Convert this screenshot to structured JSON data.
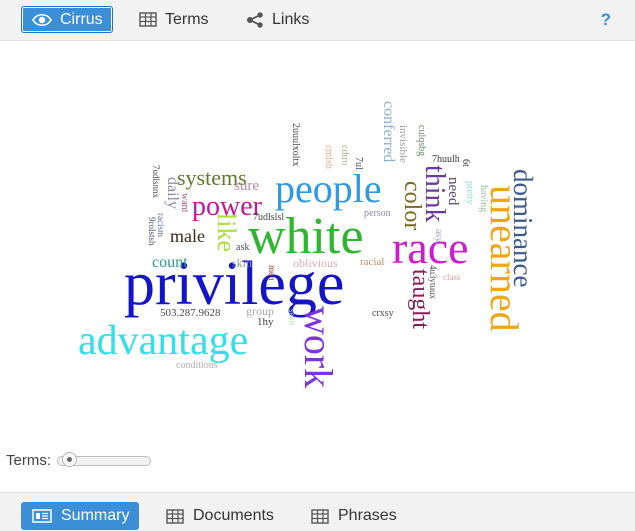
{
  "toolbar": {
    "tabs": [
      {
        "label": "Cirrus",
        "icon": "eye-icon",
        "active": true
      },
      {
        "label": "Terms",
        "icon": "table-icon",
        "active": false
      },
      {
        "label": "Links",
        "icon": "share-icon",
        "active": false
      }
    ],
    "help_label": "?"
  },
  "cloud": {
    "words": [
      {
        "text": "privilege",
        "color": "#1515c8"
      },
      {
        "text": "white",
        "color": "#2fb52f"
      },
      {
        "text": "people",
        "color": "#2e9ae6"
      },
      {
        "text": "race",
        "color": "#d01ad0"
      },
      {
        "text": "advantage",
        "color": "#33dfe8"
      },
      {
        "text": "work",
        "color": "#7a35e0"
      },
      {
        "text": "unearned",
        "color": "#f0a514"
      },
      {
        "text": "dominance",
        "color": "#3b5b8a"
      },
      {
        "text": "power",
        "color": "#c21896"
      },
      {
        "text": "systems",
        "color": "#5f7a2a"
      },
      {
        "text": "like",
        "color": "#a6e23a"
      },
      {
        "text": "think",
        "color": "#6a3aa0"
      },
      {
        "text": "color",
        "color": "#7a6a20"
      },
      {
        "text": "taught",
        "color": "#8a1a5a"
      },
      {
        "text": "count",
        "color": "#2a9a8a"
      },
      {
        "text": "male",
        "color": "#3a2a1a"
      },
      {
        "text": "daily",
        "color": "#8a8aaa"
      },
      {
        "text": "sure",
        "color": "#c08aa0"
      },
      {
        "text": "conferred",
        "color": "#8ab0d0"
      },
      {
        "text": "need",
        "color": "#5a4a6a"
      },
      {
        "text": "skin",
        "color": "#8a9a9a"
      },
      {
        "text": "oblivious",
        "color": "#d0b0b0"
      },
      {
        "text": "racial",
        "color": "#c09060"
      },
      {
        "text": "group",
        "color": "#aaaaaa"
      },
      {
        "text": "1hy",
        "color": "#444444"
      },
      {
        "text": "503.287.9628",
        "color": "#4a4a4a"
      },
      {
        "text": "conditions",
        "color": "#b0b0b0"
      },
      {
        "text": "ask",
        "color": "#4a4a5a"
      },
      {
        "text": "7udlslsl",
        "color": "#3a4a3a"
      },
      {
        "text": "person",
        "color": "#8a8ab0"
      },
      {
        "text": "crxsy",
        "color": "#4a4a4a"
      },
      {
        "text": "asyl",
        "color": "#b0a0d0"
      },
      {
        "text": "class",
        "color": "#e0a0a0"
      },
      {
        "text": "seen",
        "color": "#b0e0a0"
      },
      {
        "text": "men",
        "color": "#a03a3a"
      },
      {
        "text": "want",
        "color": "#a05a8a"
      },
      {
        "text": "racism",
        "color": "#5a6a9a"
      },
      {
        "text": "7udlsnnx",
        "color": "#4a4a4a"
      },
      {
        "text": "9rolstsh",
        "color": "#4a4a6a"
      },
      {
        "text": "2uuulxoltx",
        "color": "#4a4a4a"
      },
      {
        "text": "cmlsh",
        "color": "#e0b090"
      },
      {
        "text": "cdtro",
        "color": "#b0b0a0"
      },
      {
        "text": "7ul",
        "color": "#4a4a4a"
      },
      {
        "text": "invisible",
        "color": "#a0a0a0"
      },
      {
        "text": "culqsbg",
        "color": "#6a8a6a"
      },
      {
        "text": "7huulh",
        "color": "#3a3a3a"
      },
      {
        "text": "6t",
        "color": "#3a3a3a"
      },
      {
        "text": "pretty",
        "color": "#90e0d0"
      },
      {
        "text": "having",
        "color": "#a0c0a0"
      },
      {
        "text": "4u3ytuux",
        "color": "#4a4a4a"
      }
    ]
  },
  "terms": {
    "label": "Terms:",
    "value": 0.05
  },
  "bottom_tabs": [
    {
      "label": "Summary",
      "icon": "summary-icon",
      "active": true
    },
    {
      "label": "Documents",
      "icon": "table-icon",
      "active": false
    },
    {
      "label": "Phrases",
      "icon": "table-icon",
      "active": false
    }
  ]
}
